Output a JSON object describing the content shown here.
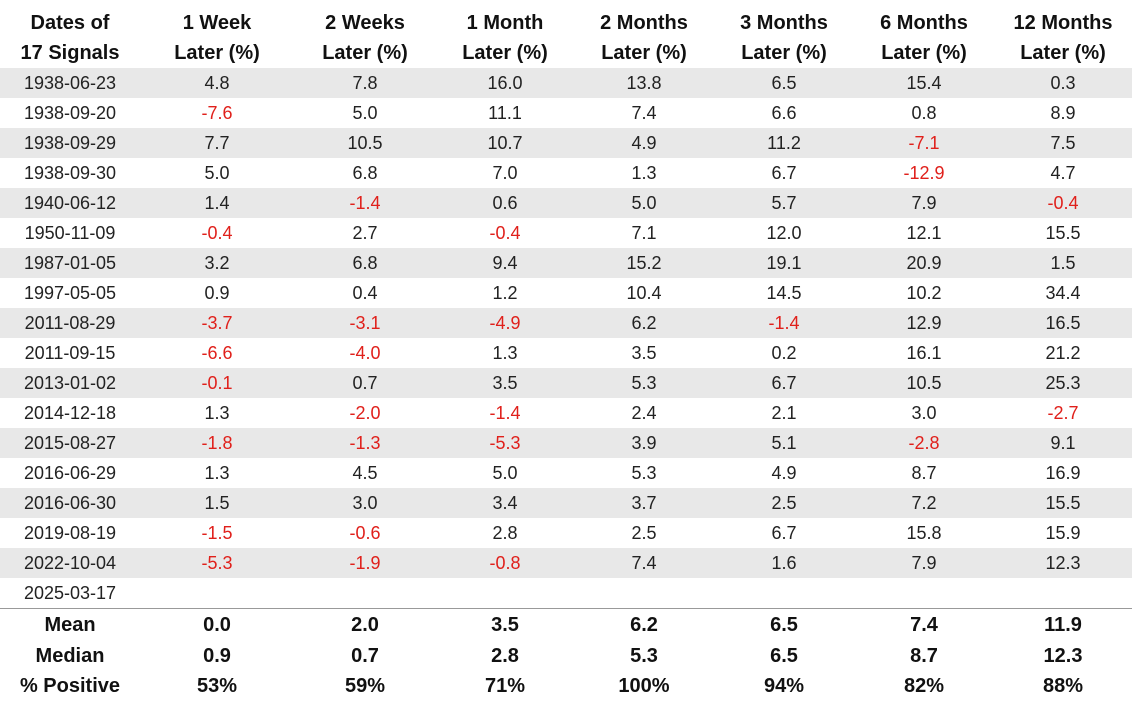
{
  "chart_data": {
    "type": "table",
    "header_line1": [
      "Dates of",
      "1 Week",
      "2 Weeks",
      "1 Month",
      "2 Months",
      "3 Months",
      "6 Months",
      "12 Months"
    ],
    "header_line2": [
      "17 Signals",
      "Later (%)",
      "Later (%)",
      "Later (%)",
      "Later (%)",
      "Later (%)",
      "Later (%)",
      "Later (%)"
    ],
    "rows": [
      {
        "date": "1938-06-23",
        "values": [
          "4.8",
          "7.8",
          "16.0",
          "13.8",
          "6.5",
          "15.4",
          "0.3"
        ]
      },
      {
        "date": "1938-09-20",
        "values": [
          "-7.6",
          "5.0",
          "11.1",
          "7.4",
          "6.6",
          "0.8",
          "8.9"
        ]
      },
      {
        "date": "1938-09-29",
        "values": [
          "7.7",
          "10.5",
          "10.7",
          "4.9",
          "11.2",
          "-7.1",
          "7.5"
        ]
      },
      {
        "date": "1938-09-30",
        "values": [
          "5.0",
          "6.8",
          "7.0",
          "1.3",
          "6.7",
          "-12.9",
          "4.7"
        ]
      },
      {
        "date": "1940-06-12",
        "values": [
          "1.4",
          "-1.4",
          "0.6",
          "5.0",
          "5.7",
          "7.9",
          "-0.4"
        ]
      },
      {
        "date": "1950-11-09",
        "values": [
          "-0.4",
          "2.7",
          "-0.4",
          "7.1",
          "12.0",
          "12.1",
          "15.5"
        ]
      },
      {
        "date": "1987-01-05",
        "values": [
          "3.2",
          "6.8",
          "9.4",
          "15.2",
          "19.1",
          "20.9",
          "1.5"
        ]
      },
      {
        "date": "1997-05-05",
        "values": [
          "0.9",
          "0.4",
          "1.2",
          "10.4",
          "14.5",
          "10.2",
          "34.4"
        ]
      },
      {
        "date": "2011-08-29",
        "values": [
          "-3.7",
          "-3.1",
          "-4.9",
          "6.2",
          "-1.4",
          "12.9",
          "16.5"
        ]
      },
      {
        "date": "2011-09-15",
        "values": [
          "-6.6",
          "-4.0",
          "1.3",
          "3.5",
          "0.2",
          "16.1",
          "21.2"
        ]
      },
      {
        "date": "2013-01-02",
        "values": [
          "-0.1",
          "0.7",
          "3.5",
          "5.3",
          "6.7",
          "10.5",
          "25.3"
        ]
      },
      {
        "date": "2014-12-18",
        "values": [
          "1.3",
          "-2.0",
          "-1.4",
          "2.4",
          "2.1",
          "3.0",
          "-2.7"
        ]
      },
      {
        "date": "2015-08-27",
        "values": [
          "-1.8",
          "-1.3",
          "-5.3",
          "3.9",
          "5.1",
          "-2.8",
          "9.1"
        ]
      },
      {
        "date": "2016-06-29",
        "values": [
          "1.3",
          "4.5",
          "5.0",
          "5.3",
          "4.9",
          "8.7",
          "16.9"
        ]
      },
      {
        "date": "2016-06-30",
        "values": [
          "1.5",
          "3.0",
          "3.4",
          "3.7",
          "2.5",
          "7.2",
          "15.5"
        ]
      },
      {
        "date": "2019-08-19",
        "values": [
          "-1.5",
          "-0.6",
          "2.8",
          "2.5",
          "6.7",
          "15.8",
          "15.9"
        ]
      },
      {
        "date": "2022-10-04",
        "values": [
          "-5.3",
          "-1.9",
          "-0.8",
          "7.4",
          "1.6",
          "7.9",
          "12.3"
        ]
      },
      {
        "date": "2025-03-17",
        "values": [
          "",
          "",
          "",
          "",
          "",
          "",
          ""
        ]
      }
    ],
    "summary": [
      {
        "label": "Mean",
        "values": [
          "0.0",
          "2.0",
          "3.5",
          "6.2",
          "6.5",
          "7.4",
          "11.9"
        ]
      },
      {
        "label": "Median",
        "values": [
          "0.9",
          "0.7",
          "2.8",
          "5.3",
          "6.5",
          "8.7",
          "12.3"
        ]
      },
      {
        "label": "% Positive",
        "values": [
          "53%",
          "59%",
          "71%",
          "100%",
          "94%",
          "82%",
          "88%"
        ]
      }
    ],
    "colors": {
      "negative": "#e0201b",
      "positive": "#222222",
      "stripe": "#e8e8e8"
    }
  }
}
